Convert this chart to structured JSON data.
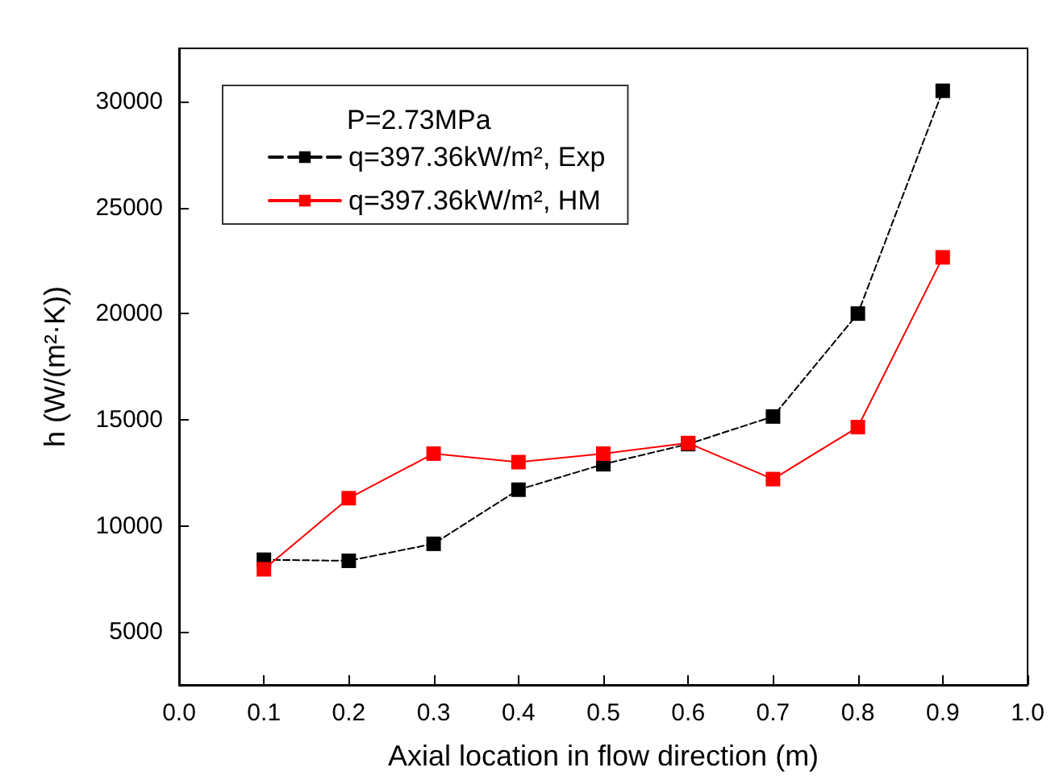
{
  "chart_data": {
    "type": "line",
    "xlabel": "Axial location in flow direction (m)",
    "ylabel": "h (W/(m²·K))",
    "legend_title": "P=2.73MPa",
    "x": [
      0.1,
      0.2,
      0.3,
      0.4,
      0.5,
      0.6,
      0.7,
      0.8,
      0.9
    ],
    "series": [
      {
        "name": "q=397.36kW/m², Exp",
        "color": "#000000",
        "line_style": "dashed",
        "values": [
          8400,
          8350,
          9150,
          11700,
          12900,
          13850,
          15150,
          20000,
          30500
        ]
      },
      {
        "name": "q=397.36kW/m², HM",
        "color": "#ff0000",
        "line_style": "solid",
        "values": [
          7950,
          11300,
          13400,
          13000,
          13400,
          13900,
          12200,
          14650,
          22650
        ]
      }
    ],
    "xlim": [
      0,
      1
    ],
    "xticks": [
      {
        "value": 0,
        "label": "0.0"
      },
      0.1,
      0.2,
      0.3,
      0.4,
      0.5,
      0.6,
      0.7,
      0.8,
      0.9,
      {
        "value": 1,
        "label": "1.0"
      }
    ],
    "ylim": [
      2500,
      32500
    ],
    "yticks": [
      5000,
      10000,
      15000,
      20000,
      25000,
      30000
    ],
    "marker": "square",
    "grid": false,
    "legend": "top left"
  }
}
